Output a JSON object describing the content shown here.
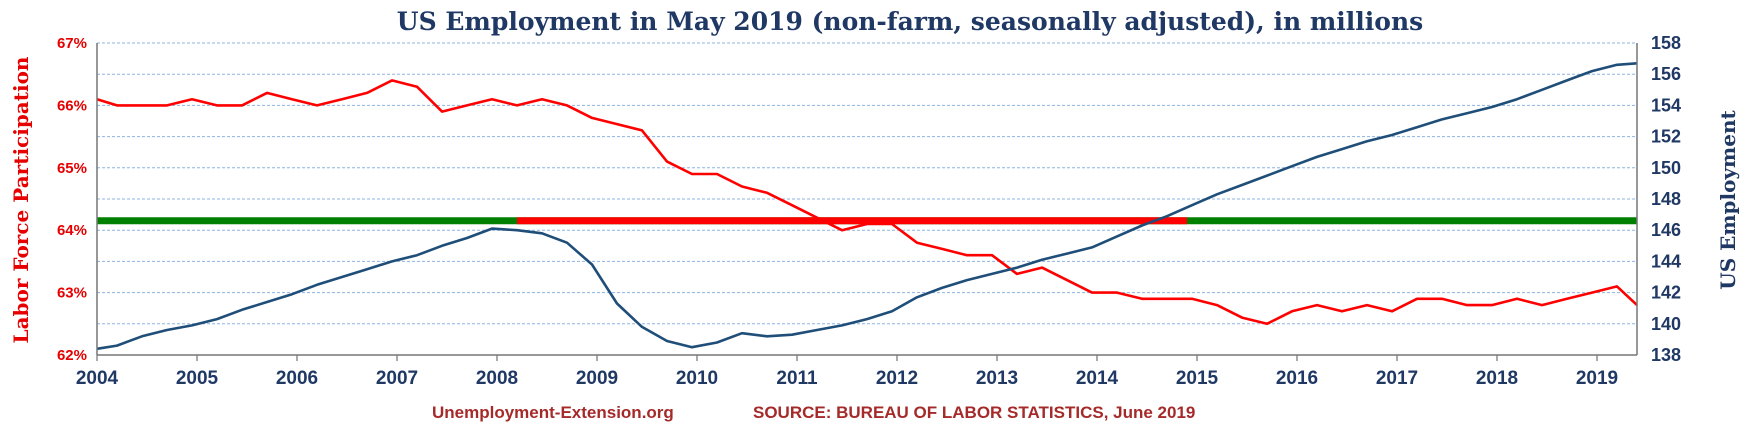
{
  "chart_data": {
    "type": "line",
    "title": "US Employment in May 2019 (non-farm, seasonally adjusted), in millions",
    "ylabel_left": "Labor Force Participation",
    "ylabel_right": "US Employment",
    "x_range": [
      2004,
      2019.4
    ],
    "ylim_left": [
      62,
      67
    ],
    "ylim_right": [
      138,
      158
    ],
    "x_ticks": [
      "2004",
      "2005",
      "2006",
      "2007",
      "2008",
      "2009",
      "2010",
      "2011",
      "2012",
      "2013",
      "2014",
      "2015",
      "2016",
      "2017",
      "2018",
      "2019"
    ],
    "y_ticks_left": [
      "62%",
      "63%",
      "64%",
      "65%",
      "66%",
      "67%"
    ],
    "y_ticks_right": [
      "138",
      "140",
      "142",
      "144",
      "146",
      "148",
      "150",
      "152",
      "154",
      "156",
      "158"
    ],
    "grid": true,
    "colors": {
      "participation": "#ff0000",
      "employment": "#1f4e79",
      "reference_green": "#008000",
      "reference_red": "#ff0000"
    },
    "series": [
      {
        "axis": "left",
        "color": "#ff0000",
        "points": [
          [
            2004.0,
            66.1
          ],
          [
            2004.2,
            66.0
          ],
          [
            2004.45,
            66.0
          ],
          [
            2004.7,
            66.0
          ],
          [
            2004.95,
            66.1
          ],
          [
            2005.2,
            66.0
          ],
          [
            2005.45,
            66.0
          ],
          [
            2005.7,
            66.2
          ],
          [
            2005.95,
            66.1
          ],
          [
            2006.2,
            66.0
          ],
          [
            2006.45,
            66.1
          ],
          [
            2006.7,
            66.2
          ],
          [
            2006.95,
            66.4
          ],
          [
            2007.2,
            66.3
          ],
          [
            2007.45,
            65.9
          ],
          [
            2007.7,
            66.0
          ],
          [
            2007.95,
            66.1
          ],
          [
            2008.2,
            66.0
          ],
          [
            2008.45,
            66.1
          ],
          [
            2008.7,
            66.0
          ],
          [
            2008.95,
            65.8
          ],
          [
            2009.2,
            65.7
          ],
          [
            2009.45,
            65.6
          ],
          [
            2009.7,
            65.1
          ],
          [
            2009.95,
            64.9
          ],
          [
            2010.2,
            64.9
          ],
          [
            2010.45,
            64.7
          ],
          [
            2010.7,
            64.6
          ],
          [
            2010.95,
            64.4
          ],
          [
            2011.2,
            64.2
          ],
          [
            2011.45,
            64.0
          ],
          [
            2011.7,
            64.1
          ],
          [
            2011.95,
            64.1
          ],
          [
            2012.2,
            63.8
          ],
          [
            2012.45,
            63.7
          ],
          [
            2012.7,
            63.6
          ],
          [
            2012.95,
            63.6
          ],
          [
            2013.2,
            63.3
          ],
          [
            2013.45,
            63.4
          ],
          [
            2013.7,
            63.2
          ],
          [
            2013.95,
            63.0
          ],
          [
            2014.2,
            63.0
          ],
          [
            2014.45,
            62.9
          ],
          [
            2014.7,
            62.9
          ],
          [
            2014.95,
            62.9
          ],
          [
            2015.2,
            62.8
          ],
          [
            2015.45,
            62.6
          ],
          [
            2015.7,
            62.5
          ],
          [
            2015.95,
            62.7
          ],
          [
            2016.2,
            62.8
          ],
          [
            2016.45,
            62.7
          ],
          [
            2016.7,
            62.8
          ],
          [
            2016.95,
            62.7
          ],
          [
            2017.2,
            62.9
          ],
          [
            2017.45,
            62.9
          ],
          [
            2017.7,
            62.8
          ],
          [
            2017.95,
            62.8
          ],
          [
            2018.2,
            62.9
          ],
          [
            2018.45,
            62.8
          ],
          [
            2018.7,
            62.9
          ],
          [
            2018.95,
            63.0
          ],
          [
            2019.2,
            63.1
          ],
          [
            2019.4,
            62.8
          ]
        ]
      },
      {
        "axis": "right",
        "color": "#1f4e79",
        "points": [
          [
            2004.0,
            138.4
          ],
          [
            2004.2,
            138.6
          ],
          [
            2004.45,
            139.2
          ],
          [
            2004.7,
            139.6
          ],
          [
            2004.95,
            139.9
          ],
          [
            2005.2,
            140.3
          ],
          [
            2005.45,
            140.9
          ],
          [
            2005.7,
            141.4
          ],
          [
            2005.95,
            141.9
          ],
          [
            2006.2,
            142.5
          ],
          [
            2006.45,
            143.0
          ],
          [
            2006.7,
            143.5
          ],
          [
            2006.95,
            144.0
          ],
          [
            2007.2,
            144.4
          ],
          [
            2007.45,
            145.0
          ],
          [
            2007.7,
            145.5
          ],
          [
            2007.95,
            146.1
          ],
          [
            2008.2,
            146.0
          ],
          [
            2008.45,
            145.8
          ],
          [
            2008.7,
            145.2
          ],
          [
            2008.95,
            143.8
          ],
          [
            2009.2,
            141.3
          ],
          [
            2009.45,
            139.8
          ],
          [
            2009.7,
            138.9
          ],
          [
            2009.95,
            138.5
          ],
          [
            2010.2,
            138.8
          ],
          [
            2010.45,
            139.4
          ],
          [
            2010.7,
            139.2
          ],
          [
            2010.95,
            139.3
          ],
          [
            2011.2,
            139.6
          ],
          [
            2011.45,
            139.9
          ],
          [
            2011.7,
            140.3
          ],
          [
            2011.95,
            140.8
          ],
          [
            2012.2,
            141.7
          ],
          [
            2012.45,
            142.3
          ],
          [
            2012.7,
            142.8
          ],
          [
            2012.95,
            143.2
          ],
          [
            2013.2,
            143.6
          ],
          [
            2013.45,
            144.1
          ],
          [
            2013.7,
            144.5
          ],
          [
            2013.95,
            144.9
          ],
          [
            2014.2,
            145.6
          ],
          [
            2014.45,
            146.3
          ],
          [
            2014.7,
            146.9
          ],
          [
            2014.95,
            147.6
          ],
          [
            2015.2,
            148.3
          ],
          [
            2015.45,
            148.9
          ],
          [
            2015.7,
            149.5
          ],
          [
            2015.95,
            150.1
          ],
          [
            2016.2,
            150.7
          ],
          [
            2016.45,
            151.2
          ],
          [
            2016.7,
            151.7
          ],
          [
            2016.95,
            152.1
          ],
          [
            2017.2,
            152.6
          ],
          [
            2017.45,
            153.1
          ],
          [
            2017.7,
            153.5
          ],
          [
            2017.95,
            153.9
          ],
          [
            2018.2,
            154.4
          ],
          [
            2018.45,
            155.0
          ],
          [
            2018.7,
            155.6
          ],
          [
            2018.95,
            156.2
          ],
          [
            2019.2,
            156.6
          ],
          [
            2019.4,
            156.7
          ]
        ]
      },
      {
        "axis": "left",
        "color": "#008000",
        "points": [
          [
            2004.0,
            64.15
          ],
          [
            2019.4,
            64.15
          ]
        ]
      },
      {
        "axis": "left",
        "color": "#ff0000",
        "points": [
          [
            2008.2,
            64.15
          ],
          [
            2014.9,
            64.15
          ]
        ]
      }
    ]
  },
  "footer": {
    "site": "Unemployment-Extension.org",
    "source": "SOURCE: BUREAU OF LABOR STATISTICS, June 2019"
  }
}
